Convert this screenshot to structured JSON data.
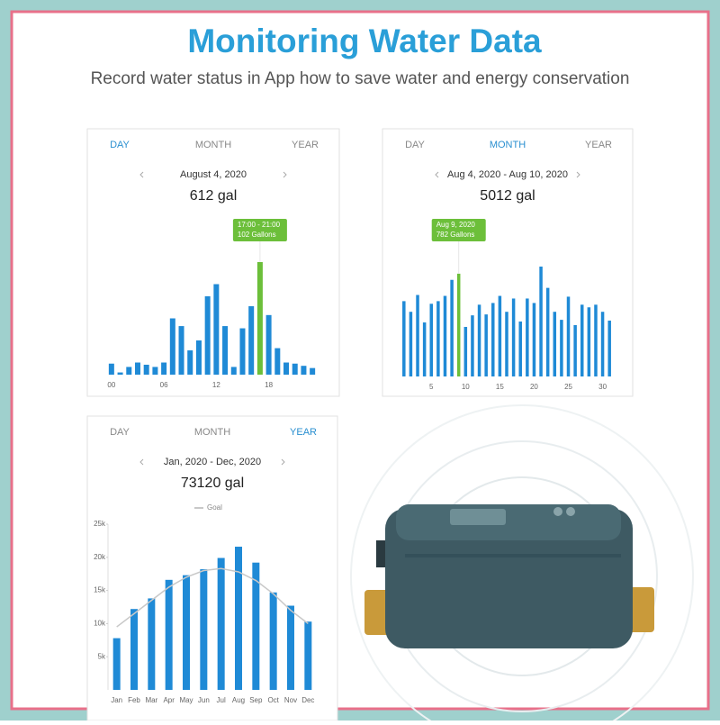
{
  "header": {
    "title": "Monitoring Water Data",
    "subtitle": "Record water status in App how to save water and energy conservation"
  },
  "chart_data": [
    {
      "type": "bar",
      "tabs": [
        "DAY",
        "MONTH",
        "YEAR"
      ],
      "active_tab": 0,
      "date_range": "August 4, 2020",
      "total": "612 gal",
      "tooltip": {
        "title": "17:00 - 21:00",
        "value": "102 Gallons"
      },
      "highlight": 17,
      "categories": [
        "00",
        null,
        null,
        null,
        null,
        null,
        "06",
        null,
        null,
        null,
        null,
        null,
        "12",
        null,
        null,
        null,
        null,
        null,
        "18",
        null,
        null,
        null,
        null,
        null
      ],
      "values": [
        10,
        2,
        7,
        11,
        9,
        7,
        11,
        51,
        44,
        22,
        31,
        71,
        82,
        44,
        7,
        42,
        62,
        102,
        54,
        24,
        11,
        10,
        8,
        6
      ],
      "color": "#1f8ad6",
      "highlight_color": "#6cbf3a"
    },
    {
      "type": "bar",
      "tabs": [
        "DAY",
        "MONTH",
        "YEAR"
      ],
      "active_tab": 1,
      "date_range": "Aug 4, 2020 - Aug 10, 2020",
      "total": "5012 gal",
      "tooltip": {
        "title": "Aug 9, 2020",
        "value": "782 Gallons"
      },
      "highlight": 8,
      "categories": [
        null,
        null,
        null,
        null,
        "5",
        null,
        null,
        null,
        null,
        "10",
        null,
        null,
        null,
        null,
        "15",
        null,
        null,
        null,
        null,
        "20",
        null,
        null,
        null,
        null,
        "25",
        null,
        null,
        null,
        null,
        "30",
        null
      ],
      "values": [
        573,
        492,
        620,
        411,
        553,
        573,
        613,
        735,
        782,
        377,
        465,
        546,
        472,
        559,
        613,
        492,
        593,
        418,
        593,
        559,
        836,
        674,
        492,
        431,
        607,
        391,
        546,
        526,
        546,
        492,
        425
      ],
      "color": "#1f8ad6",
      "highlight_color": "#6cbf3a"
    },
    {
      "type": "bar",
      "tabs": [
        "DAY",
        "MONTH",
        "YEAR"
      ],
      "active_tab": 2,
      "date_range": "Jan, 2020 - Dec, 2020",
      "total": "73120 gal",
      "categories": [
        "Jan",
        "Feb",
        "Mar",
        "Apr",
        "May",
        "Jun",
        "Jul",
        "Aug",
        "Sep",
        "Oct",
        "Nov",
        "Dec"
      ],
      "values": [
        7800,
        12200,
        13800,
        16600,
        17300,
        18200,
        19900,
        21600,
        19200,
        14700,
        12700,
        10300
      ],
      "color": "#1f8ad6",
      "goal": {
        "name": "Goal",
        "color": "#c8c8c8",
        "values": [
          9500,
          11500,
          13500,
          15500,
          17000,
          18000,
          18300,
          17800,
          16500,
          14500,
          12000,
          10000
        ]
      },
      "ylim": [
        0,
        25000
      ],
      "yticks": [
        {
          "value": 5000,
          "label": "5k"
        },
        {
          "value": 10000,
          "label": "10k"
        },
        {
          "value": 15000,
          "label": "15k"
        },
        {
          "value": 20000,
          "label": "20k"
        },
        {
          "value": 25000,
          "label": "25k"
        }
      ]
    }
  ]
}
